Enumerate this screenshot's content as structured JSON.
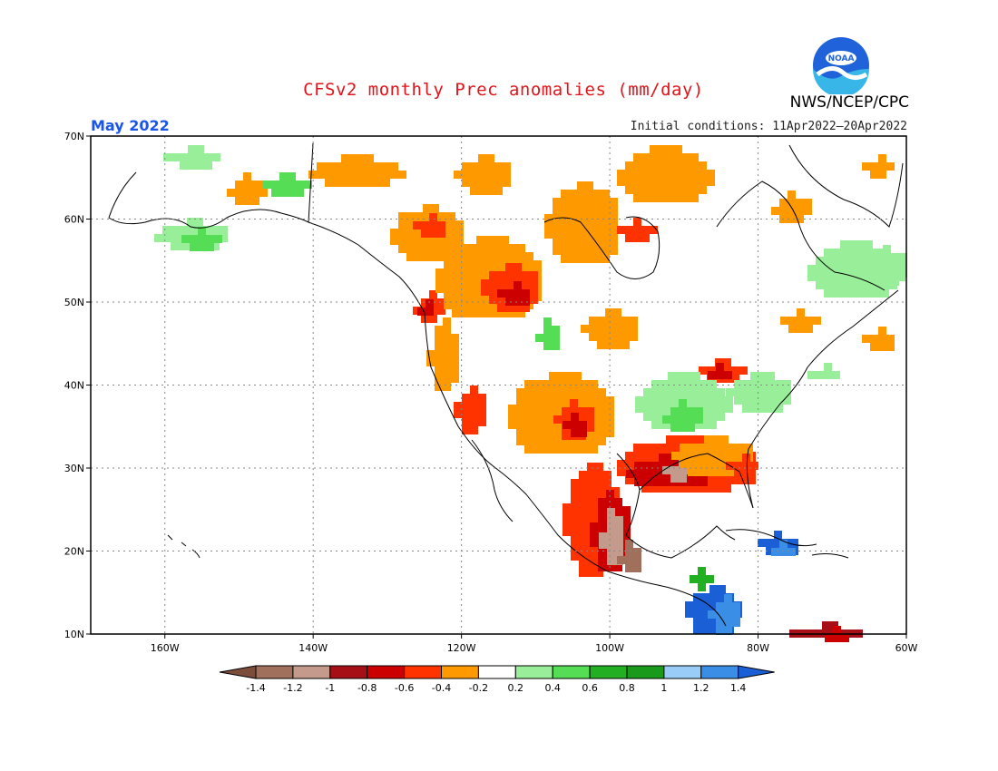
{
  "title": "CFSv2 monthly Prec anomalies (mm/day)",
  "agency": "NWS/NCEP/CPC",
  "logo_text": "NOAA",
  "month": "May 2022",
  "initial_conditions": "Initial conditions: 11Apr2022–20Apr2022",
  "lat_labels": [
    "70N",
    "60N",
    "50N",
    "40N",
    "30N",
    "20N",
    "10N"
  ],
  "lon_labels": [
    "160W",
    "140W",
    "120W",
    "100W",
    "80W",
    "60W"
  ],
  "colorbar": {
    "labels": [
      "-1.4",
      "-1.2",
      "-1",
      "-0.8",
      "-0.6",
      "-0.4",
      "-0.2",
      "0.2",
      "0.4",
      "0.6",
      "0.8",
      "1",
      "1.2",
      "1.4"
    ],
    "colors": [
      "#7b4d3a",
      "#a0705d",
      "#c49a8c",
      "#a50f15",
      "#cc0000",
      "#ff3300",
      "#ff9900",
      "#ffffff",
      "#99ee99",
      "#55dd55",
      "#22b022",
      "#1a9a1a",
      "#99ccf7",
      "#3a8ee6",
      "#1a5fd6"
    ]
  },
  "colors": {
    "title": "#e0141a",
    "month": "#1a56e8",
    "ocean": "#ffffff",
    "land_outline": "#000000",
    "grid": "#888888"
  }
}
